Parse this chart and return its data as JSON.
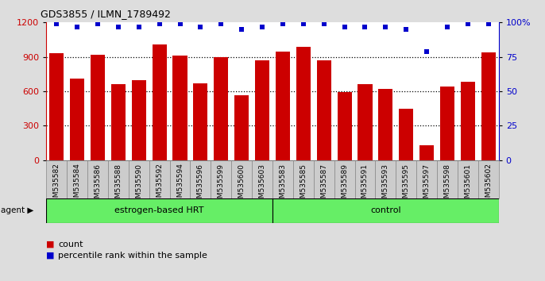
{
  "title": "GDS3855 / ILMN_1789492",
  "categories": [
    "GSM535582",
    "GSM535584",
    "GSM535586",
    "GSM535588",
    "GSM535590",
    "GSM535592",
    "GSM535594",
    "GSM535596",
    "GSM535599",
    "GSM535600",
    "GSM535603",
    "GSM535583",
    "GSM535585",
    "GSM535587",
    "GSM535589",
    "GSM535591",
    "GSM535593",
    "GSM535595",
    "GSM535597",
    "GSM535598",
    "GSM535601",
    "GSM535602"
  ],
  "bar_values": [
    935,
    710,
    920,
    660,
    700,
    1010,
    910,
    670,
    900,
    565,
    870,
    945,
    990,
    870,
    595,
    665,
    620,
    450,
    130,
    645,
    680,
    940
  ],
  "percentile_values": [
    99,
    97,
    99,
    97,
    97,
    99,
    99,
    97,
    99,
    95,
    97,
    99,
    99,
    99,
    97,
    97,
    97,
    95,
    79,
    97,
    99,
    99
  ],
  "bar_color": "#cc0000",
  "dot_color": "#0000cc",
  "ylim_left": [
    0,
    1200
  ],
  "ylim_right": [
    0,
    100
  ],
  "yticks_left": [
    0,
    300,
    600,
    900,
    1200
  ],
  "yticks_right": [
    0,
    25,
    50,
    75,
    100
  ],
  "group1_label": "estrogen-based HRT",
  "group1_count": 11,
  "group2_label": "control",
  "group2_count": 11,
  "group_color": "#66ee66",
  "agent_label": "agent",
  "legend_count_label": "count",
  "legend_pct_label": "percentile rank within the sample",
  "background_color": "#dddddd",
  "plot_bg_color": "#ffffff",
  "xlabel_bg_color": "#cccccc"
}
